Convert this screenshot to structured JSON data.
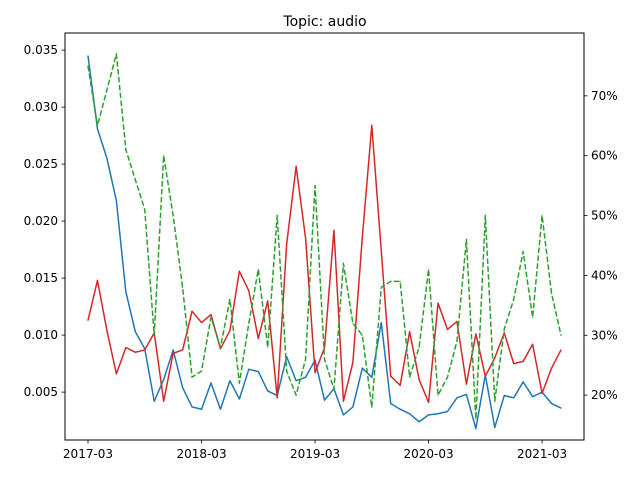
{
  "chart_data": {
    "type": "line",
    "title": "Topic: audio",
    "xlabel": "",
    "ylabel_left": "",
    "ylabel_right": "",
    "x_dates": [
      "2017-03",
      "2017-04",
      "2017-05",
      "2017-06",
      "2017-07",
      "2017-08",
      "2017-09",
      "2017-10",
      "2017-11",
      "2017-12",
      "2018-01",
      "2018-02",
      "2018-03",
      "2018-04",
      "2018-05",
      "2018-06",
      "2018-07",
      "2018-08",
      "2018-09",
      "2018-10",
      "2018-11",
      "2018-12",
      "2019-01",
      "2019-02",
      "2019-03",
      "2019-04",
      "2019-05",
      "2019-06",
      "2019-07",
      "2019-08",
      "2019-09",
      "2019-10",
      "2019-11",
      "2019-12",
      "2020-01",
      "2020-02",
      "2020-03",
      "2020-04",
      "2020-05",
      "2020-06",
      "2020-07",
      "2020-08",
      "2020-09",
      "2020-10",
      "2020-11",
      "2020-12",
      "2021-01",
      "2021-02",
      "2021-03",
      "2021-04",
      "2021-05"
    ],
    "x_ticks": [
      "2017-03",
      "2018-03",
      "2019-03",
      "2020-03",
      "2021-03"
    ],
    "ylim_left": [
      0.0008,
      0.0365
    ],
    "yticks_left": [
      "0.005",
      "0.010",
      "0.015",
      "0.020",
      "0.025",
      "0.030",
      "0.035"
    ],
    "yticks_left_values": [
      0.005,
      0.01,
      0.015,
      0.02,
      0.025,
      0.03,
      0.035
    ],
    "ylim_right": [
      0.125,
      0.805
    ],
    "yticks_right": [
      "20%",
      "30%",
      "40%",
      "50%",
      "60%",
      "70%"
    ],
    "yticks_right_values": [
      0.2,
      0.3,
      0.4,
      0.5,
      0.6,
      0.7
    ],
    "grid": false,
    "legend": "none",
    "series": [
      {
        "axis": "left",
        "color": "#1f77b4",
        "dash": "solid",
        "values": [
          0.0345,
          0.0281,
          0.0255,
          0.0218,
          0.0138,
          0.0103,
          0.0088,
          0.0042,
          0.0061,
          0.0087,
          0.0054,
          0.0037,
          0.0035,
          0.0058,
          0.0035,
          0.006,
          0.0044,
          0.007,
          0.0068,
          0.0051,
          0.0047,
          0.0081,
          0.006,
          0.0063,
          0.0078,
          0.0043,
          0.0053,
          0.003,
          0.0037,
          0.0071,
          0.0063,
          0.0111,
          0.004,
          0.0035,
          0.0031,
          0.0024,
          0.003,
          0.0031,
          0.0033,
          0.0045,
          0.0048,
          0.0018,
          0.0065,
          0.0019,
          0.0047,
          0.0045,
          0.0059,
          0.0046,
          0.005,
          0.004,
          0.0036
        ]
      },
      {
        "axis": "left",
        "color": "#d62728",
        "dash": "solid",
        "values": [
          0.0113,
          0.0148,
          0.0104,
          0.0066,
          0.0089,
          0.0085,
          0.0087,
          0.0102,
          0.0042,
          0.0084,
          0.0087,
          0.0121,
          0.0111,
          0.0118,
          0.0088,
          0.0104,
          0.0156,
          0.0139,
          0.0097,
          0.013,
          0.0045,
          0.018,
          0.0248,
          0.0185,
          0.0067,
          0.0089,
          0.0192,
          0.0042,
          0.0076,
          0.0186,
          0.0284,
          0.0174,
          0.0064,
          0.0056,
          0.0103,
          0.0061,
          0.0041,
          0.0128,
          0.0105,
          0.0112,
          0.0057,
          0.0101,
          0.0064,
          0.008,
          0.0102,
          0.0075,
          0.0077,
          0.0092,
          0.0049,
          0.0071,
          0.0087
        ]
      },
      {
        "axis": "right",
        "color": "#2ca02c",
        "dash": "dashed",
        "values": [
          0.75,
          0.65,
          0.71,
          0.77,
          0.61,
          0.56,
          0.51,
          0.3,
          0.6,
          0.5,
          0.38,
          0.23,
          0.24,
          0.33,
          0.28,
          0.36,
          0.22,
          0.32,
          0.41,
          0.28,
          0.5,
          0.24,
          0.2,
          0.26,
          0.55,
          0.26,
          0.21,
          0.42,
          0.32,
          0.3,
          0.18,
          0.38,
          0.39,
          0.39,
          0.23,
          0.28,
          0.41,
          0.2,
          0.23,
          0.29,
          0.46,
          0.16,
          0.5,
          0.19,
          0.31,
          0.36,
          0.44,
          0.33,
          0.5,
          0.37,
          0.3
        ]
      }
    ]
  }
}
